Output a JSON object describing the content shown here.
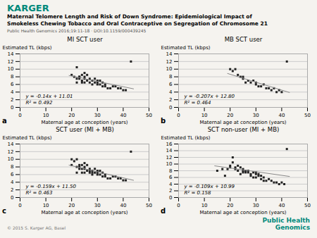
{
  "title": "Maternal Telomere Length and Risk of Down Syndrome: Epidemiological Impact of\nSmokeless Chewing Tobacco and Oral Contraceptive on Segregation of Chromosome 21",
  "subtitle": "Public Health Genomics 2016;19:11-18 · DOI:10.1159/000439245",
  "background": "#f5f3ef",
  "annotations": [
    {
      "text": "KARGER",
      "color": "#00897B"
    },
    {
      "text": "© 2015 S. Karger AG, Basel",
      "color": "#777777"
    },
    {
      "text": "Public Health\nGenomics",
      "color": "#00897B"
    }
  ],
  "chart_data": [
    {
      "type": "scatter",
      "title": "MI SCT user",
      "panel_label": "a",
      "xlabel": "Maternal age at conception (years)",
      "ylabel": "Estimated TL (kbps)",
      "annotations": [
        "y = -0.14x + 11.01",
        "R² = 0.492"
      ],
      "xlim": [
        0,
        50
      ],
      "xticks": [
        0,
        10,
        20,
        30,
        40,
        50
      ],
      "ylim": [
        0,
        14
      ],
      "yticks": [
        0,
        2,
        4,
        6,
        8,
        10,
        12,
        14
      ],
      "grid": true,
      "series": [
        {
          "type": "scatter",
          "color": "#222222",
          "marker": "square",
          "x": [
            20,
            21,
            22,
            22,
            22,
            23,
            23,
            23,
            24,
            24,
            24,
            25,
            25,
            25,
            25,
            26,
            26,
            27,
            27,
            28,
            28,
            29,
            29,
            30,
            30,
            30,
            31,
            31,
            32,
            32,
            33,
            33,
            34,
            35,
            36,
            37,
            38,
            39,
            40,
            41,
            43
          ],
          "values": [
            8.5,
            8.0,
            7.5,
            6.5,
            10.5,
            8.0,
            7.5,
            8.0,
            8.5,
            7.0,
            6.5,
            8.0,
            7.5,
            6.5,
            9.0,
            8.5,
            7.0,
            7.5,
            6.5,
            7.0,
            6.0,
            7.5,
            6.5,
            6.0,
            7.0,
            6.5,
            7.0,
            6.0,
            5.5,
            6.5,
            5.5,
            6.0,
            5.0,
            5.0,
            5.5,
            5.5,
            5.0,
            5.0,
            4.5,
            4.5,
            12.0
          ]
        },
        {
          "type": "line",
          "color": "#888888",
          "x": [
            19,
            44
          ],
          "values": [
            8.35,
            4.85
          ]
        }
      ]
    },
    {
      "type": "scatter",
      "title": "MB SCT user",
      "panel_label": "b",
      "xlabel": "Maternal age at conception (years)",
      "ylabel": "Estimated TL (kbps)",
      "annotations": [
        "y = -0.207x + 12.80",
        "R² = 0.464"
      ],
      "xlim": [
        0,
        50
      ],
      "xticks": [
        0,
        10,
        20,
        30,
        40,
        50
      ],
      "ylim": [
        0,
        14
      ],
      "yticks": [
        0,
        2,
        4,
        6,
        8,
        10,
        12,
        14
      ],
      "grid": true,
      "series": [
        {
          "type": "scatter",
          "color": "#222222",
          "marker": "square",
          "x": [
            20,
            21,
            22,
            23,
            24,
            25,
            25,
            26,
            27,
            28,
            29,
            30,
            30,
            31,
            32,
            33,
            34,
            35,
            36,
            37,
            38,
            39,
            40,
            42
          ],
          "values": [
            10.0,
            9.5,
            10.0,
            8.5,
            8.0,
            7.5,
            8.0,
            6.5,
            7.0,
            6.5,
            7.0,
            6.0,
            6.5,
            5.5,
            5.5,
            6.0,
            5.0,
            5.0,
            4.5,
            5.0,
            4.0,
            4.5,
            4.0,
            12.0
          ]
        },
        {
          "type": "line",
          "color": "#888888",
          "x": [
            19,
            43
          ],
          "values": [
            8.867,
            3.899
          ]
        }
      ]
    },
    {
      "type": "scatter",
      "title": "SCT user (MI + MB)",
      "panel_label": "c",
      "xlabel": "Maternal age at conception (years)",
      "ylabel": "Estimated TL (kbps)",
      "annotations": [
        "y = -0.159x + 11.50",
        "R² = 0.463"
      ],
      "xlim": [
        0,
        50
      ],
      "xticks": [
        0,
        10,
        20,
        30,
        40,
        50
      ],
      "ylim": [
        0,
        14
      ],
      "yticks": [
        0,
        2,
        4,
        6,
        8,
        10,
        12,
        14
      ],
      "grid": true,
      "series": [
        {
          "type": "scatter",
          "color": "#222222",
          "marker": "square",
          "x": [
            20,
            20,
            21,
            22,
            22,
            22,
            23,
            23,
            23,
            24,
            24,
            24,
            25,
            25,
            25,
            25,
            26,
            26,
            27,
            27,
            27,
            28,
            28,
            28,
            29,
            29,
            30,
            30,
            30,
            31,
            31,
            32,
            32,
            33,
            33,
            34,
            35,
            36,
            37,
            38,
            39,
            40,
            41,
            43
          ],
          "values": [
            8.5,
            10.0,
            9.5,
            10.0,
            8.0,
            6.5,
            8.0,
            7.5,
            8.5,
            8.5,
            7.5,
            6.5,
            8.0,
            7.5,
            6.5,
            9.0,
            8.5,
            7.0,
            7.5,
            6.5,
            7.0,
            7.0,
            6.5,
            6.0,
            7.5,
            6.5,
            6.0,
            7.0,
            6.5,
            7.0,
            6.0,
            5.5,
            6.5,
            5.5,
            6.0,
            5.0,
            5.0,
            5.5,
            5.5,
            5.0,
            5.0,
            4.5,
            4.5,
            12.0
          ]
        },
        {
          "type": "line",
          "color": "#888888",
          "x": [
            19,
            44
          ],
          "values": [
            8.479,
            4.504
          ]
        }
      ]
    },
    {
      "type": "scatter",
      "title": "SCT non-user (MI + MB)",
      "panel_label": "d",
      "xlabel": "Maternal age at conception (years)",
      "ylabel": "Estimated TL (kbps)",
      "annotations": [
        "y = -0.109x + 10.99",
        "R² = 0.158"
      ],
      "xlim": [
        0,
        50
      ],
      "xticks": [
        0,
        10,
        20,
        30,
        40,
        50
      ],
      "ylim": [
        0,
        16
      ],
      "yticks": [
        0,
        2,
        4,
        6,
        8,
        10,
        12,
        14,
        16
      ],
      "grid": true,
      "series": [
        {
          "type": "scatter",
          "color": "#222222",
          "marker": "square",
          "x": [
            15,
            17,
            18,
            19,
            20,
            20,
            21,
            21,
            22,
            22,
            23,
            23,
            24,
            24,
            25,
            25,
            25,
            26,
            26,
            27,
            27,
            28,
            28,
            29,
            29,
            30,
            30,
            30,
            31,
            31,
            32,
            32,
            33,
            33,
            34,
            35,
            36,
            37,
            38,
            39,
            40,
            41,
            42
          ],
          "values": [
            8.0,
            8.5,
            6.5,
            8.5,
            9.0,
            9.5,
            10.5,
            12.0,
            9.0,
            8.5,
            9.5,
            8.0,
            7.0,
            9.0,
            8.0,
            7.5,
            8.5,
            7.5,
            8.0,
            7.5,
            8.0,
            7.0,
            6.5,
            7.5,
            6.0,
            7.0,
            7.5,
            6.0,
            7.0,
            6.5,
            6.5,
            5.5,
            6.0,
            5.0,
            5.0,
            5.5,
            5.0,
            4.5,
            4.5,
            4.0,
            4.5,
            4.0,
            14.5
          ]
        },
        {
          "type": "line",
          "color": "#888888",
          "x": [
            14,
            43
          ],
          "values": [
            9.464,
            6.303
          ]
        }
      ]
    }
  ]
}
